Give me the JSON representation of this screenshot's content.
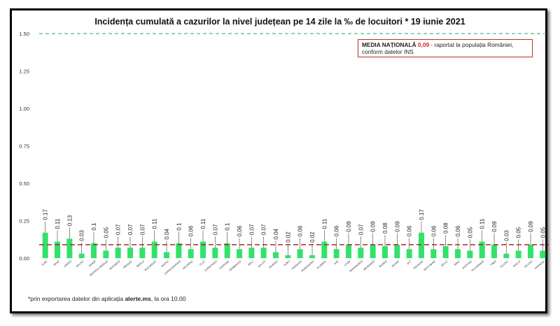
{
  "title": "Incidența cumulată a cazurilor la nivel județean pe 14 zile la ‰ de locuitori *  19 iunie 2021",
  "callout": {
    "label": "MEDIA NAȚIONALĂ",
    "value": "0,09",
    "text_line1": " - raportat la populația României,",
    "text_line2": "conform datelor INS"
  },
  "footnote": {
    "prefix": "*prin exportarea datelor din aplicația ",
    "app": "alerte.ms",
    "suffix": ", la ora 10.00"
  },
  "chart_data": {
    "type": "bar",
    "title": "Incidența cumulată a cazurilor la nivel județean pe 14 zile la ‰ de locuitori *  19 iunie 2021",
    "categories": [
      "ALBA",
      "ARAD",
      "ARGEȘ",
      "BACĂU",
      "BIHOR",
      "BISTRIȚA-NĂSĂUD",
      "BOTOȘANI",
      "BRAȘOV",
      "BRĂILA",
      "BUCUREȘTI",
      "BUZĂU",
      "CARAȘ-SEVERIN",
      "CĂLĂRAȘI",
      "CLUJ",
      "CONSTANȚA",
      "COVASNA",
      "DÂMBOVIȚA",
      "DOLJ",
      "GALAȚI",
      "GIURGIU",
      "GORJ",
      "HARGHITA",
      "HUNEDOARA",
      "IALOMIȚA",
      "IAȘI",
      "ILFOV",
      "MARAMUREȘ",
      "MEHEDINȚI",
      "MUREȘ",
      "NEAMȚ",
      "OLT",
      "PRAHOVA",
      "SATU MARE",
      "SĂLAJ",
      "SIBIU",
      "SUCEAVA",
      "TELEORMAN",
      "TIMIȘ",
      "TULCEA",
      "VASLUI",
      "VÂLCEA",
      "VRANCEA"
    ],
    "values": [
      0.17,
      0.11,
      0.13,
      0.03,
      0.1,
      0.05,
      0.07,
      0.07,
      0.07,
      0.11,
      0.04,
      0.1,
      0.06,
      0.11,
      0.07,
      0.1,
      0.06,
      0.07,
      0.07,
      0.04,
      0.02,
      0.06,
      0.02,
      0.11,
      0.06,
      0.09,
      0.07,
      0.09,
      0.08,
      0.09,
      0.06,
      0.17,
      0.06,
      0.08,
      0.06,
      0.05,
      0.11,
      0.09,
      0.03,
      0.05,
      0.09,
      0.05
    ],
    "value_labels": [
      "0.17",
      "0.11",
      "0.13",
      "0.03",
      "0.1",
      "0.05",
      "0.07",
      "0.07",
      "0.07",
      "0.11",
      "0.04",
      "0.1",
      "0.06",
      "0.11",
      "0.07",
      "0.1",
      "0.06",
      "0.07",
      "0.07",
      "0.04",
      "0.02",
      "0.06",
      "0.02",
      "0.11",
      "0.06",
      "0.09",
      "0.07",
      "0.09",
      "0.08",
      "0.09",
      "0.06",
      "0.17",
      "0.06",
      "0.08",
      "0.06",
      "0.05",
      "0.11",
      "0.09",
      "0.03",
      "0.05",
      "0.09",
      "0.05"
    ],
    "y_ticks": [
      "0.00",
      "0.25",
      "0.50",
      "0.75",
      "1.00",
      "1.25",
      "1.50"
    ],
    "ylim": [
      0,
      1.5
    ],
    "reference_lines": [
      {
        "value": 1.5,
        "color": "#2aa57a",
        "style": "dashed"
      },
      {
        "value": 0.09,
        "color": "#b3262a",
        "style": "dashed"
      }
    ],
    "bar_color": "#33e26a",
    "grid": false
  }
}
